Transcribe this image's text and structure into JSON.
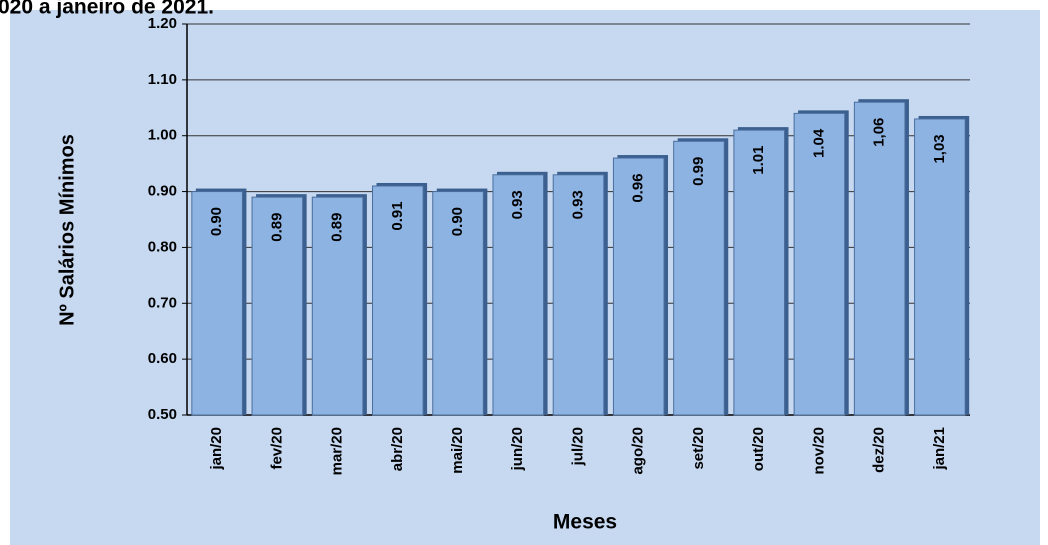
{
  "chart_data": {
    "type": "bar",
    "title": "020 a janeiro de 2021.",
    "x_label": "Meses",
    "y_label": "Nº Salários Mínimos",
    "categories": [
      "jan/20",
      "fev/20",
      "mar/20",
      "abr/20",
      "mai/20",
      "jun/20",
      "jul/20",
      "ago/20",
      "set/20",
      "out/20",
      "nov/20",
      "dez/20",
      "jan/21"
    ],
    "values": [
      0.9,
      0.89,
      0.89,
      0.91,
      0.9,
      0.93,
      0.93,
      0.96,
      0.99,
      1.01,
      1.04,
      1.06,
      1.03
    ],
    "value_labels": [
      "0.90",
      "0.89",
      "0.89",
      "0.91",
      "0.90",
      "0.93",
      "0.93",
      "0.96",
      "0.99",
      "1.01",
      "1.04",
      "1,06",
      "1,03"
    ],
    "color": "#8db3e2",
    "ylim": [
      0.5,
      1.2
    ],
    "yticks": [
      {
        "value": 0.5,
        "label": "0.50"
      },
      {
        "value": 0.6,
        "label": "0.60"
      },
      {
        "value": 0.7,
        "label": "0.70"
      },
      {
        "value": 0.8,
        "label": "0.80"
      },
      {
        "value": 0.9,
        "label": "0.90"
      },
      {
        "value": 1.0,
        "label": "1.00"
      },
      {
        "value": 1.1,
        "label": "1.10"
      },
      {
        "value": 1.2,
        "label": "1.20"
      }
    ],
    "grid": true
  }
}
